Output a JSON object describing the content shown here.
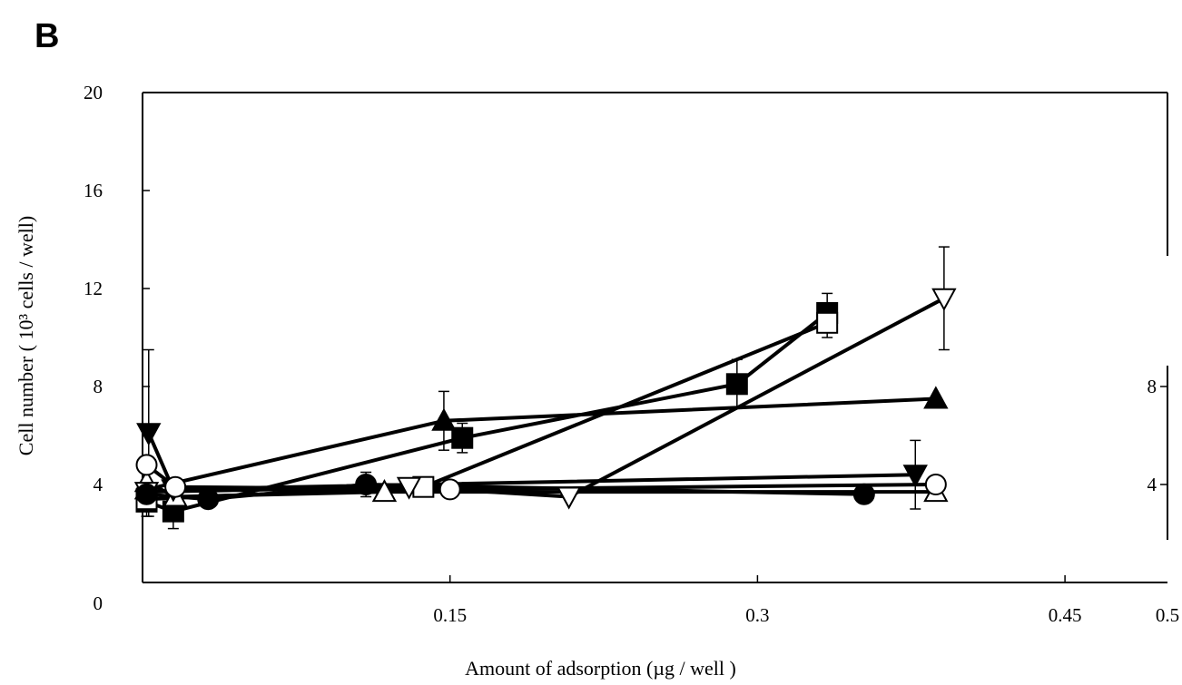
{
  "panel_label": "B",
  "chart_data": {
    "type": "line",
    "xlabel": "Amount of adsorption (µg / well )",
    "ylabel": "Cell number ( 10³ cells / well)",
    "xlim": [
      0,
      0.5
    ],
    "ylim": [
      0,
      20
    ],
    "x_ticks": [
      {
        "value": 0.15,
        "label": "0.15"
      },
      {
        "value": 0.3,
        "label": "0.3"
      },
      {
        "value": 0.45,
        "label": "0.45"
      },
      {
        "value": 0.5,
        "label": "0.5"
      }
    ],
    "y_ticks": [
      {
        "value": 0,
        "label": "0"
      },
      {
        "value": 4,
        "label": "4"
      },
      {
        "value": 8,
        "label": "8"
      },
      {
        "value": 12,
        "label": "12"
      },
      {
        "value": 16,
        "label": "16"
      },
      {
        "value": 20,
        "label": "20"
      }
    ],
    "right_ticks": [
      {
        "value": 4,
        "label": "4"
      },
      {
        "value": 8,
        "label": "8"
      }
    ],
    "grid": false,
    "legend": "none",
    "series": [
      {
        "marker": "filled-square",
        "points": [
          {
            "x": 0.002,
            "y": 3.3,
            "err": 0.6
          },
          {
            "x": 0.015,
            "y": 2.9,
            "err": 0.7
          },
          {
            "x": 0.156,
            "y": 5.9,
            "err": 0.6
          },
          {
            "x": 0.29,
            "y": 8.1,
            "err": 1.0
          },
          {
            "x": 0.334,
            "y": 11.0,
            "err": 0.8
          }
        ]
      },
      {
        "marker": "open-square",
        "points": [
          {
            "x": 0.002,
            "y": 3.4,
            "err": 0
          },
          {
            "x": 0.137,
            "y": 3.9,
            "err": 0
          },
          {
            "x": 0.334,
            "y": 10.6,
            "err": 0.6
          }
        ]
      },
      {
        "marker": "filled-triangle-up",
        "points": [
          {
            "x": 0.002,
            "y": 3.8,
            "err": 0
          },
          {
            "x": 0.147,
            "y": 6.6,
            "err": 1.2
          },
          {
            "x": 0.387,
            "y": 7.5,
            "err": 0
          }
        ]
      },
      {
        "marker": "open-triangle-up",
        "points": [
          {
            "x": 0.002,
            "y": 4.1,
            "err": 0
          },
          {
            "x": 0.016,
            "y": 3.5,
            "err": 0
          },
          {
            "x": 0.118,
            "y": 3.7,
            "err": 0
          },
          {
            "x": 0.387,
            "y": 3.7,
            "err": 0
          }
        ]
      },
      {
        "marker": "filled-triangle-down",
        "points": [
          {
            "x": 0.003,
            "y": 6.1,
            "err": 3.4
          },
          {
            "x": 0.015,
            "y": 3.8,
            "err": 0
          },
          {
            "x": 0.377,
            "y": 4.4,
            "err": 1.4
          }
        ]
      },
      {
        "marker": "open-triangle-down",
        "points": [
          {
            "x": 0.002,
            "y": 3.7,
            "err": 0
          },
          {
            "x": 0.13,
            "y": 3.9,
            "err": 0
          },
          {
            "x": 0.208,
            "y": 3.5,
            "err": 0
          },
          {
            "x": 0.391,
            "y": 11.6,
            "err": 2.1
          }
        ]
      },
      {
        "marker": "filled-circle",
        "points": [
          {
            "x": 0.002,
            "y": 3.6,
            "err": 0
          },
          {
            "x": 0.032,
            "y": 3.4,
            "err": 0
          },
          {
            "x": 0.109,
            "y": 4.0,
            "err": 0.5
          },
          {
            "x": 0.352,
            "y": 3.6,
            "err": 0
          }
        ]
      },
      {
        "marker": "open-circle",
        "points": [
          {
            "x": 0.002,
            "y": 4.8,
            "err": 0
          },
          {
            "x": 0.016,
            "y": 3.9,
            "err": 0
          },
          {
            "x": 0.15,
            "y": 3.8,
            "err": 0
          },
          {
            "x": 0.387,
            "y": 4.0,
            "err": 0
          }
        ]
      }
    ]
  }
}
